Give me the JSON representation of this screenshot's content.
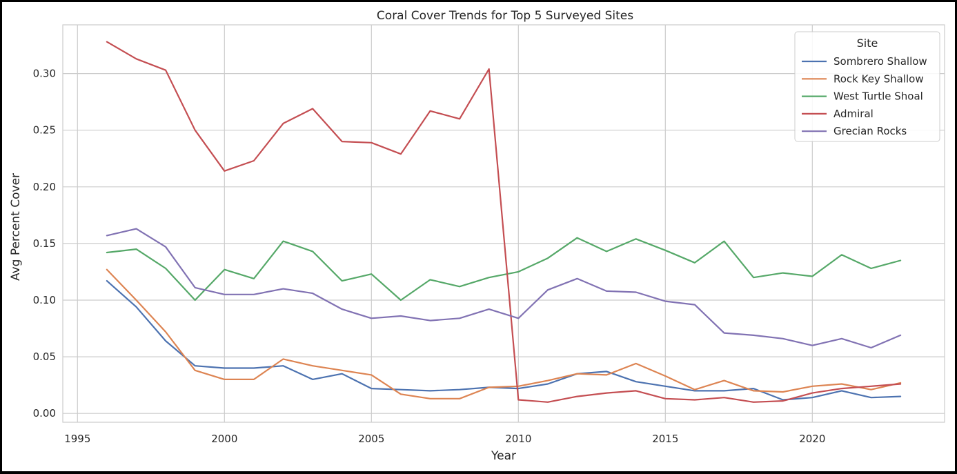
{
  "chart_data": {
    "type": "line",
    "title": "Coral Cover Trends for Top 5 Surveyed Sites",
    "xlabel": "Year",
    "ylabel": "Avg Percent Cover",
    "xlim": [
      1994.5,
      2024.5
    ],
    "ylim": [
      -0.0078,
      0.343
    ],
    "x_ticks": [
      1995,
      2000,
      2005,
      2010,
      2015,
      2020
    ],
    "y_ticks": [
      0.0,
      0.05,
      0.1,
      0.15,
      0.2,
      0.25,
      0.3
    ],
    "y_tick_labels": [
      "0.00",
      "0.05",
      "0.10",
      "0.15",
      "0.20",
      "0.25",
      "0.30"
    ],
    "grid": true,
    "legend_title": "Site",
    "legend_position": "top-right",
    "x": [
      1996,
      1997,
      1998,
      1999,
      2000,
      2001,
      2002,
      2003,
      2004,
      2005,
      2006,
      2007,
      2008,
      2009,
      2010,
      2011,
      2012,
      2013,
      2014,
      2015,
      2016,
      2017,
      2018,
      2019,
      2020,
      2021,
      2022,
      2023
    ],
    "series": [
      {
        "name": "Sombrero Shallow",
        "color": "#4c72b0",
        "values": [
          0.117,
          0.094,
          0.064,
          0.042,
          0.04,
          0.04,
          0.042,
          0.03,
          0.035,
          0.022,
          0.021,
          0.02,
          0.021,
          0.023,
          0.022,
          0.026,
          0.035,
          0.037,
          0.028,
          0.024,
          0.02,
          0.02,
          0.022,
          0.012,
          0.014,
          0.02,
          0.014,
          0.015
        ]
      },
      {
        "name": "Rock Key Shallow",
        "color": "#dd8452",
        "values": [
          0.127,
          0.1,
          0.072,
          0.038,
          0.03,
          0.03,
          0.048,
          0.042,
          0.038,
          0.034,
          0.017,
          0.013,
          0.013,
          0.023,
          0.024,
          0.029,
          0.035,
          0.034,
          0.044,
          0.033,
          0.021,
          0.029,
          0.02,
          0.019,
          0.024,
          0.026,
          0.021,
          0.027
        ]
      },
      {
        "name": "West Turtle Shoal",
        "color": "#55a868",
        "values": [
          0.142,
          0.145,
          0.128,
          0.1,
          0.127,
          0.119,
          0.152,
          0.143,
          0.117,
          0.123,
          0.1,
          0.118,
          0.112,
          0.12,
          0.125,
          0.137,
          0.155,
          0.143,
          0.154,
          0.144,
          0.133,
          0.152,
          0.12,
          0.124,
          0.121,
          0.14,
          0.128,
          0.135
        ]
      },
      {
        "name": "Admiral",
        "color": "#c44e52",
        "values": [
          0.328,
          0.313,
          0.303,
          0.25,
          0.214,
          0.223,
          0.256,
          0.269,
          0.24,
          0.239,
          0.229,
          0.267,
          0.26,
          0.304,
          0.012,
          0.01,
          0.015,
          0.018,
          0.02,
          0.013,
          0.012,
          0.014,
          0.01,
          0.011,
          0.018,
          0.022,
          0.024,
          0.026
        ]
      },
      {
        "name": "Grecian Rocks",
        "color": "#8172b3",
        "values": [
          0.157,
          0.163,
          0.147,
          0.111,
          0.105,
          0.105,
          0.11,
          0.106,
          0.092,
          0.084,
          0.086,
          0.082,
          0.084,
          0.092,
          0.084,
          0.109,
          0.119,
          0.108,
          0.107,
          0.099,
          0.096,
          0.071,
          0.069,
          0.066,
          0.06,
          0.066,
          0.058,
          0.069
        ]
      }
    ]
  }
}
